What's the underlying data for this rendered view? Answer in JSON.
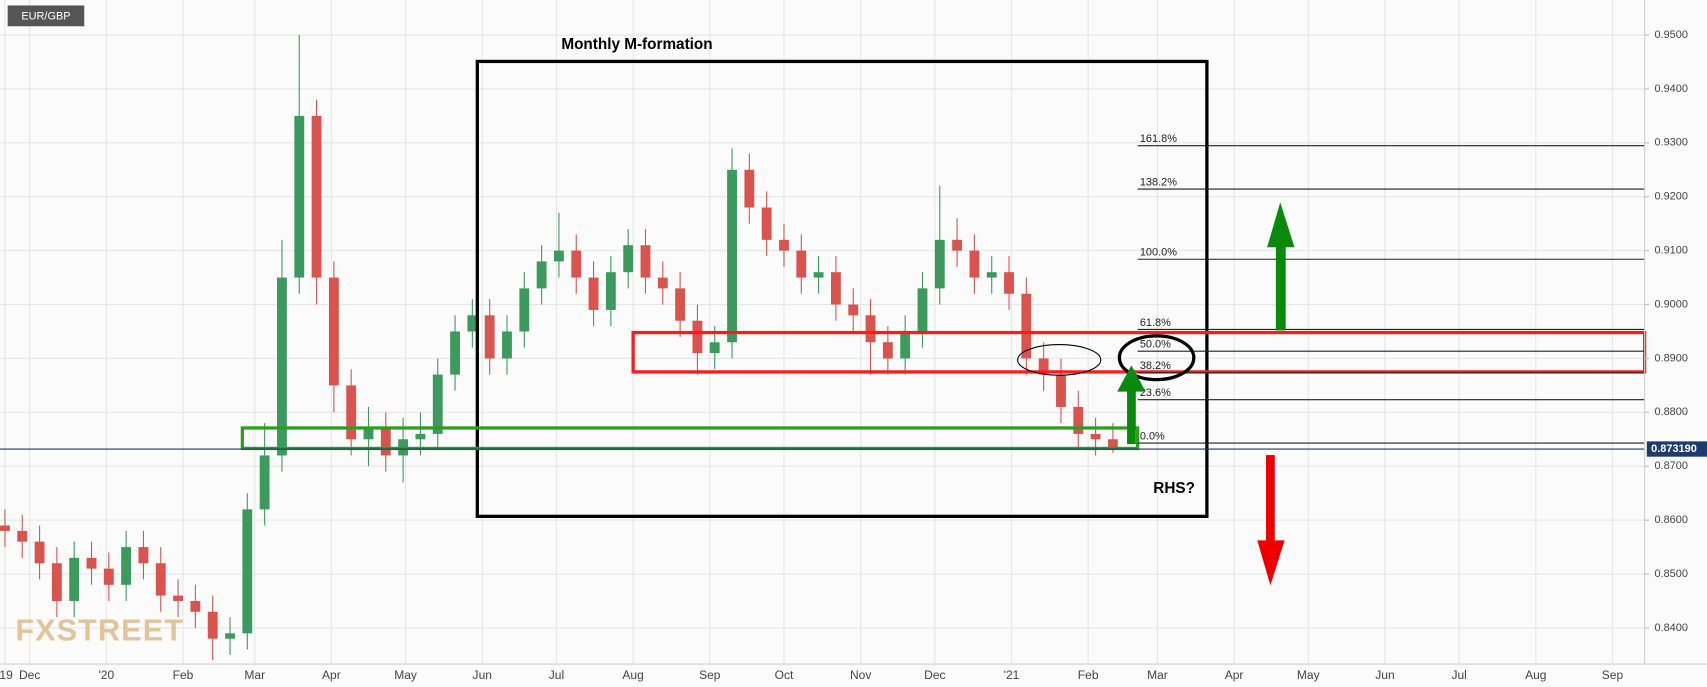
{
  "chart_data": {
    "type": "candlestick",
    "symbol": "EUR/GBP",
    "title": "Monthly M-formation",
    "annotation": "RHS?",
    "watermark": "FXSTREET",
    "up_color": "#3c9a5f",
    "down_color": "#d9534f",
    "grid": true,
    "x": [
      -10,
      -3,
      4,
      11,
      18,
      25,
      32,
      39,
      46,
      53,
      60,
      67,
      74,
      81,
      88,
      95,
      102,
      109,
      116,
      123,
      130,
      137,
      144,
      151,
      158,
      165,
      172,
      179,
      186,
      193,
      200,
      207,
      214,
      221,
      228,
      235,
      242,
      249,
      256,
      263,
      270,
      277,
      284,
      291,
      298,
      305,
      312,
      319,
      326,
      333,
      340,
      347,
      354,
      361,
      368,
      375,
      382,
      389,
      396,
      403,
      410,
      417,
      424,
      431,
      438
    ],
    "open": [
      0.859,
      0.858,
      0.856,
      0.852,
      0.845,
      0.853,
      0.851,
      0.848,
      0.855,
      0.852,
      0.846,
      0.845,
      0.843,
      0.838,
      0.839,
      0.862,
      0.872,
      0.905,
      0.935,
      0.905,
      0.885,
      0.875,
      0.877,
      0.872,
      0.875,
      0.876,
      0.887,
      0.895,
      0.898,
      0.89,
      0.895,
      0.903,
      0.908,
      0.91,
      0.905,
      0.899,
      0.906,
      0.911,
      0.905,
      0.903,
      0.897,
      0.891,
      0.893,
      0.925,
      0.918,
      0.912,
      0.91,
      0.905,
      0.906,
      0.9,
      0.898,
      0.893,
      0.89,
      0.895,
      0.903,
      0.912,
      0.91,
      0.905,
      0.906,
      0.902,
      0.89,
      0.887,
      0.881,
      0.876,
      0.875
    ],
    "high": [
      0.862,
      0.861,
      0.859,
      0.855,
      0.856,
      0.856,
      0.854,
      0.858,
      0.858,
      0.855,
      0.849,
      0.848,
      0.846,
      0.842,
      0.865,
      0.878,
      0.912,
      0.95,
      0.938,
      0.908,
      0.888,
      0.881,
      0.88,
      0.879,
      0.88,
      0.89,
      0.898,
      0.901,
      0.901,
      0.898,
      0.906,
      0.911,
      0.917,
      0.913,
      0.908,
      0.909,
      0.914,
      0.914,
      0.908,
      0.906,
      0.9,
      0.896,
      0.929,
      0.928,
      0.921,
      0.915,
      0.913,
      0.909,
      0.909,
      0.903,
      0.901,
      0.896,
      0.898,
      0.906,
      0.922,
      0.916,
      0.913,
      0.909,
      0.909,
      0.905,
      0.893,
      0.89,
      0.884,
      0.879,
      0.878
    ],
    "low": [
      0.855,
      0.853,
      0.849,
      0.842,
      0.842,
      0.848,
      0.845,
      0.845,
      0.849,
      0.843,
      0.842,
      0.84,
      0.834,
      0.835,
      0.836,
      0.859,
      0.869,
      0.902,
      0.9,
      0.88,
      0.872,
      0.87,
      0.869,
      0.867,
      0.872,
      0.873,
      0.884,
      0.892,
      0.887,
      0.887,
      0.892,
      0.9,
      0.905,
      0.902,
      0.896,
      0.896,
      0.903,
      0.902,
      0.9,
      0.894,
      0.887,
      0.888,
      0.89,
      0.915,
      0.909,
      0.907,
      0.902,
      0.902,
      0.897,
      0.895,
      0.887,
      0.887,
      0.887,
      0.892,
      0.9,
      0.907,
      0.902,
      0.902,
      0.899,
      0.887,
      0.884,
      0.878,
      0.873,
      0.872,
      0.8725
    ],
    "close": [
      0.858,
      0.856,
      0.852,
      0.845,
      0.853,
      0.851,
      0.848,
      0.855,
      0.852,
      0.846,
      0.845,
      0.843,
      0.838,
      0.839,
      0.862,
      0.872,
      0.905,
      0.935,
      0.905,
      0.885,
      0.875,
      0.877,
      0.872,
      0.875,
      0.876,
      0.887,
      0.895,
      0.898,
      0.89,
      0.895,
      0.903,
      0.908,
      0.91,
      0.905,
      0.899,
      0.906,
      0.911,
      0.905,
      0.903,
      0.897,
      0.891,
      0.893,
      0.925,
      0.918,
      0.912,
      0.91,
      0.905,
      0.906,
      0.9,
      0.898,
      0.893,
      0.89,
      0.895,
      0.903,
      0.912,
      0.91,
      0.905,
      0.906,
      0.902,
      0.89,
      0.887,
      0.881,
      0.876,
      0.875,
      0.8732
    ],
    "xlim": [
      -12,
      653
    ],
    "xticks": [
      {
        "value": -10,
        "label": "'19"
      },
      {
        "value": 0,
        "label": "Dec"
      },
      {
        "value": 31,
        "label": "'20"
      },
      {
        "value": 62,
        "label": "Feb"
      },
      {
        "value": 91,
        "label": "Mar"
      },
      {
        "value": 122,
        "label": "Apr"
      },
      {
        "value": 152,
        "label": "May"
      },
      {
        "value": 183,
        "label": "Jun"
      },
      {
        "value": 213,
        "label": "Jul"
      },
      {
        "value": 244,
        "label": "Aug"
      },
      {
        "value": 275,
        "label": "Sep"
      },
      {
        "value": 305,
        "label": "Oct"
      },
      {
        "value": 336,
        "label": "Nov"
      },
      {
        "value": 366,
        "label": "Dec"
      },
      {
        "value": 397,
        "label": "'21"
      },
      {
        "value": 428,
        "label": "Feb"
      },
      {
        "value": 456,
        "label": "Mar"
      },
      {
        "value": 487,
        "label": "Apr"
      },
      {
        "value": 517,
        "label": "May"
      },
      {
        "value": 548,
        "label": "Jun"
      },
      {
        "value": 578,
        "label": "Jul"
      },
      {
        "value": 609,
        "label": "Aug"
      },
      {
        "value": 640,
        "label": "Sep"
      }
    ],
    "ylim": [
      0.8333,
      0.9565
    ],
    "yticks": [
      {
        "value": 0.84,
        "label": "0.8400"
      },
      {
        "value": 0.85,
        "label": "0.8500"
      },
      {
        "value": 0.86,
        "label": "0.8600"
      },
      {
        "value": 0.87,
        "label": "0.8700"
      },
      {
        "value": 0.88,
        "label": "0.8800"
      },
      {
        "value": 0.89,
        "label": "0.8900"
      },
      {
        "value": 0.9,
        "label": "0.9000"
      },
      {
        "value": 0.91,
        "label": "0.9100"
      },
      {
        "value": 0.92,
        "label": "0.9200"
      },
      {
        "value": 0.93,
        "label": "0.9300"
      },
      {
        "value": 0.94,
        "label": "0.9400"
      },
      {
        "value": 0.95,
        "label": "0.9500"
      }
    ],
    "last_price": {
      "value": 0.87319,
      "label": "0.873190",
      "color": "#1f3a6e"
    },
    "fibonacci": {
      "low": 0.8743,
      "high": 0.9084,
      "start": 448,
      "levels": [
        {
          "value": 0,
          "label": "0.0%"
        },
        {
          "value": 23.6,
          "label": "23.6%"
        },
        {
          "value": 38.2,
          "label": "38.2%"
        },
        {
          "value": 50,
          "label": "50.0%"
        },
        {
          "value": 61.8,
          "label": "61.8%"
        },
        {
          "value": 100,
          "label": "100.0%"
        },
        {
          "value": 138.2,
          "label": "138.2%"
        },
        {
          "value": 161.8,
          "label": "161.8%"
        }
      ]
    },
    "zones": [
      {
        "x": [
          181,
          476
        ],
        "y": [
          0.8607,
          0.9451
        ],
        "color": "#000000"
      },
      {
        "x": [
          244,
          653
        ],
        "y": [
          0.8875,
          0.8948
        ],
        "color": "#ff1a1a"
      },
      {
        "x": [
          86,
          448
        ],
        "y": [
          0.8733,
          0.8771
        ],
        "color": "#2e9e1e"
      }
    ]
  }
}
